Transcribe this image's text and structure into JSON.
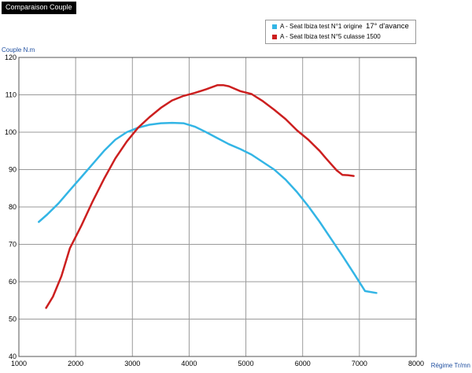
{
  "window": {
    "title": "Comparaison Couple"
  },
  "chart_data": {
    "type": "line",
    "title": "Comparaison Couple",
    "xlabel": "Régime Tr/mn",
    "ylabel": "Couple N.m",
    "xlim": [
      1000,
      8000
    ],
    "ylim": [
      40,
      120
    ],
    "xticks": [
      1000,
      2000,
      3000,
      4000,
      5000,
      6000,
      7000,
      8000
    ],
    "yticks": [
      40,
      50,
      60,
      70,
      80,
      90,
      100,
      110,
      120
    ],
    "grid": true,
    "legend_position": "top-right",
    "series": [
      {
        "name": "A - Seat Ibiza test N°1 origine",
        "tag": "17° d'avance",
        "color": "#33b5e5",
        "x": [
          1350,
          1500,
          1700,
          1900,
          2100,
          2300,
          2500,
          2700,
          2900,
          3100,
          3300,
          3500,
          3700,
          3900,
          4100,
          4300,
          4500,
          4700,
          4900,
          5100,
          5300,
          5500,
          5700,
          5900,
          6100,
          6300,
          6500,
          6700,
          6900,
          7100,
          7300
        ],
        "y": [
          76,
          78,
          81,
          84.5,
          88,
          91.5,
          95,
          98,
          100,
          101.2,
          102,
          102.4,
          102.5,
          102.4,
          101.5,
          100,
          98.4,
          96.8,
          95.5,
          94,
          92,
          90,
          87.3,
          84,
          80.2,
          76,
          71.5,
          67,
          62.3,
          57.5,
          57
        ]
      },
      {
        "name": "A - Seat Ibiza test N°5 culasse 1500",
        "color": "#cc1f1f",
        "x": [
          1480,
          1600,
          1750,
          1900,
          2100,
          2300,
          2500,
          2700,
          2900,
          3100,
          3300,
          3500,
          3700,
          3900,
          4100,
          4300,
          4500,
          4600,
          4700,
          4900,
          5100,
          5300,
          5500,
          5700,
          5900,
          6100,
          6200,
          6300,
          6400,
          6500,
          6600,
          6700,
          6800,
          6900
        ],
        "y": [
          53,
          56,
          61.5,
          69,
          75,
          81.5,
          87.5,
          93,
          97.5,
          101.2,
          104,
          106.5,
          108.5,
          109.7,
          110.5,
          111.5,
          112.6,
          112.6,
          112.3,
          111,
          110.2,
          108.3,
          106,
          103.5,
          100.5,
          98,
          96.5,
          95,
          93.2,
          91.5,
          89.8,
          88.6,
          88.5,
          88.3
        ]
      }
    ]
  }
}
